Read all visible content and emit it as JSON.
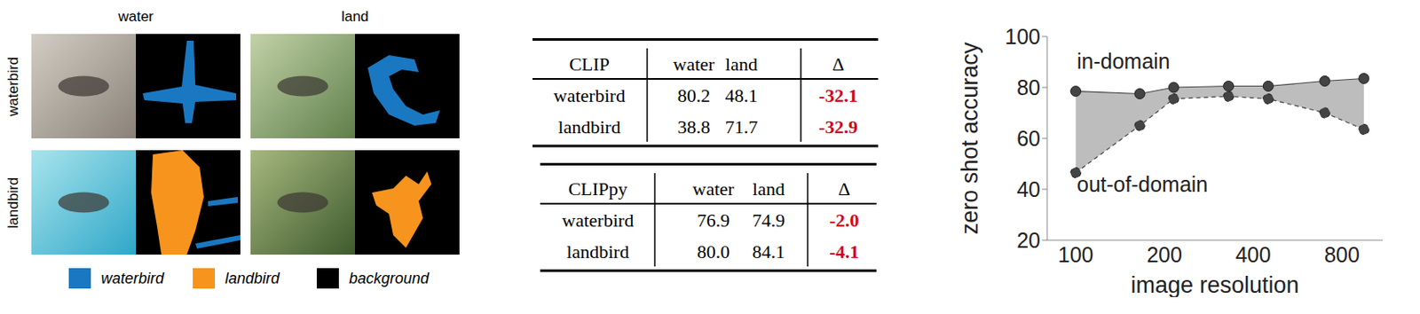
{
  "segmentation": {
    "columns": [
      "water",
      "land"
    ],
    "rows": [
      "waterbird",
      "landbird"
    ],
    "legend": [
      {
        "label": "waterbird",
        "color": "#1a78c2"
      },
      {
        "label": "landbird",
        "color": "#f7941d"
      },
      {
        "label": "background",
        "color": "#000000"
      }
    ]
  },
  "tables": [
    {
      "header": [
        "CLIP",
        "water",
        "land",
        "Δ"
      ],
      "rows": [
        [
          "waterbird",
          "80.2",
          "48.1",
          "-32.1"
        ],
        [
          "landbird",
          "38.8",
          "71.7",
          "-32.9"
        ]
      ]
    },
    {
      "header": [
        "CLIPpy",
        "water",
        "land",
        "Δ"
      ],
      "rows": [
        [
          "waterbird",
          "76.9",
          "74.9",
          "-2.0"
        ],
        [
          "landbird",
          "80.0",
          "84.1",
          "-4.1"
        ]
      ]
    }
  ],
  "chart_data": {
    "type": "line",
    "x_label": "image resolution",
    "y_label": "zero shot accuracy",
    "x": [
      100,
      165,
      215,
      330,
      450,
      700,
      950
    ],
    "series": [
      {
        "name": "in-domain",
        "color": "#444444",
        "values": [
          78.5,
          77.5,
          80,
          80.5,
          80.5,
          82.5,
          83.5
        ],
        "line_style": "solid",
        "marker": "circle"
      },
      {
        "name": "out-of-domain",
        "color": "#444444",
        "values": [
          46.5,
          65,
          75.5,
          76.5,
          75.5,
          70,
          63.5
        ],
        "line_style": "dashed",
        "marker": "circle"
      }
    ],
    "log": "x",
    "xlim": [
      80,
      1100
    ],
    "xticks": [
      100,
      200,
      400,
      800
    ],
    "ylim": [
      20,
      100
    ],
    "yticks": [
      20,
      40,
      60,
      80,
      100
    ],
    "grid": false
  }
}
